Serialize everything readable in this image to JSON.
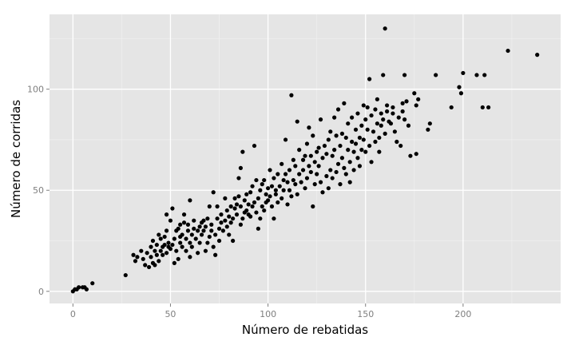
{
  "chart_data": {
    "type": "scatter",
    "title": "",
    "xlabel": "Número de rebatidas",
    "ylabel": "Número de corridas",
    "xlim": [
      -12,
      250
    ],
    "ylim": [
      -6,
      137
    ],
    "x_ticks": [
      0,
      50,
      100,
      150,
      200
    ],
    "y_ticks": [
      0,
      50,
      100
    ],
    "x_tick_labels": [
      "0",
      "50",
      "100",
      "150",
      "200"
    ],
    "y_tick_labels": [
      "0",
      "50",
      "100"
    ],
    "grid": true,
    "legend": "none",
    "point_color": "#000000",
    "panel_color": "#e5e5e5",
    "points": [
      [
        0,
        0
      ],
      [
        1,
        1
      ],
      [
        2,
        1
      ],
      [
        3,
        2
      ],
      [
        5,
        2
      ],
      [
        6,
        2
      ],
      [
        7,
        1
      ],
      [
        10,
        4
      ],
      [
        27,
        8
      ],
      [
        31,
        18
      ],
      [
        32,
        15
      ],
      [
        33,
        17
      ],
      [
        35,
        20
      ],
      [
        36,
        16
      ],
      [
        37,
        13
      ],
      [
        38,
        19
      ],
      [
        39,
        12
      ],
      [
        40,
        22
      ],
      [
        40,
        17
      ],
      [
        41,
        14
      ],
      [
        41,
        25
      ],
      [
        42,
        20
      ],
      [
        42,
        13
      ],
      [
        43,
        23
      ],
      [
        43,
        18
      ],
      [
        44,
        15
      ],
      [
        44,
        28
      ],
      [
        45,
        20
      ],
      [
        45,
        26
      ],
      [
        46,
        22
      ],
      [
        46,
        18
      ],
      [
        47,
        27
      ],
      [
        47,
        23
      ],
      [
        48,
        30
      ],
      [
        48,
        19
      ],
      [
        48,
        38
      ],
      [
        49,
        22
      ],
      [
        49,
        24
      ],
      [
        50,
        21
      ],
      [
        50,
        35
      ],
      [
        51,
        23
      ],
      [
        51,
        41
      ],
      [
        52,
        26
      ],
      [
        52,
        14
      ],
      [
        53,
        20
      ],
      [
        53,
        30
      ],
      [
        54,
        31
      ],
      [
        54,
        16
      ],
      [
        55,
        24
      ],
      [
        55,
        27
      ],
      [
        55,
        33
      ],
      [
        56,
        22
      ],
      [
        56,
        28
      ],
      [
        57,
        34
      ],
      [
        57,
        38
      ],
      [
        58,
        26
      ],
      [
        58,
        20
      ],
      [
        59,
        30
      ],
      [
        59,
        33
      ],
      [
        60,
        24
      ],
      [
        60,
        17
      ],
      [
        60,
        45
      ],
      [
        61,
        28
      ],
      [
        61,
        22
      ],
      [
        62,
        31
      ],
      [
        62,
        35
      ],
      [
        63,
        26
      ],
      [
        64,
        30
      ],
      [
        64,
        19
      ],
      [
        65,
        32
      ],
      [
        65,
        24
      ],
      [
        66,
        28
      ],
      [
        66,
        34
      ],
      [
        67,
        30
      ],
      [
        67,
        35
      ],
      [
        68,
        32
      ],
      [
        68,
        20
      ],
      [
        69,
        24
      ],
      [
        69,
        36
      ],
      [
        70,
        27
      ],
      [
        70,
        42
      ],
      [
        71,
        30
      ],
      [
        71,
        33
      ],
      [
        72,
        22
      ],
      [
        72,
        49
      ],
      [
        73,
        18
      ],
      [
        73,
        28
      ],
      [
        74,
        36
      ],
      [
        74,
        42
      ],
      [
        75,
        31
      ],
      [
        75,
        25
      ],
      [
        76,
        34
      ],
      [
        76,
        38
      ],
      [
        77,
        30
      ],
      [
        78,
        35
      ],
      [
        78,
        46
      ],
      [
        79,
        40
      ],
      [
        79,
        32
      ],
      [
        80,
        37
      ],
      [
        80,
        28
      ],
      [
        81,
        42
      ],
      [
        81,
        34
      ],
      [
        82,
        25
      ],
      [
        82,
        36
      ],
      [
        83,
        46
      ],
      [
        83,
        41
      ],
      [
        84,
        38
      ],
      [
        84,
        43
      ],
      [
        85,
        56
      ],
      [
        85,
        47
      ],
      [
        86,
        42
      ],
      [
        86,
        33
      ],
      [
        86,
        61
      ],
      [
        87,
        69
      ],
      [
        87,
        36
      ],
      [
        88,
        45
      ],
      [
        88,
        39
      ],
      [
        89,
        40
      ],
      [
        89,
        48
      ],
      [
        90,
        38
      ],
      [
        90,
        43
      ],
      [
        91,
        49
      ],
      [
        91,
        37
      ],
      [
        92,
        52
      ],
      [
        92,
        42
      ],
      [
        93,
        44
      ],
      [
        93,
        72
      ],
      [
        94,
        39
      ],
      [
        94,
        55
      ],
      [
        95,
        46
      ],
      [
        95,
        31
      ],
      [
        96,
        50
      ],
      [
        96,
        36
      ],
      [
        97,
        53
      ],
      [
        97,
        42
      ],
      [
        98,
        40
      ],
      [
        98,
        55
      ],
      [
        99,
        44
      ],
      [
        99,
        48
      ],
      [
        100,
        51
      ],
      [
        100,
        45
      ],
      [
        101,
        47
      ],
      [
        101,
        60
      ],
      [
        102,
        42
      ],
      [
        102,
        52
      ],
      [
        103,
        56
      ],
      [
        103,
        36
      ],
      [
        104,
        50
      ],
      [
        104,
        48
      ],
      [
        105,
        58
      ],
      [
        105,
        44
      ],
      [
        106,
        52
      ],
      [
        107,
        46
      ],
      [
        107,
        63
      ],
      [
        108,
        55
      ],
      [
        108,
        50
      ],
      [
        109,
        58
      ],
      [
        109,
        75
      ],
      [
        110,
        43
      ],
      [
        110,
        54
      ],
      [
        111,
        60
      ],
      [
        111,
        50
      ],
      [
        112,
        47
      ],
      [
        112,
        97
      ],
      [
        113,
        65
      ],
      [
        113,
        55
      ],
      [
        114,
        53
      ],
      [
        114,
        62
      ],
      [
        115,
        84
      ],
      [
        115,
        48
      ],
      [
        116,
        58
      ],
      [
        116,
        70
      ],
      [
        117,
        54
      ],
      [
        118,
        65
      ],
      [
        118,
        60
      ],
      [
        119,
        67
      ],
      [
        119,
        51
      ],
      [
        120,
        73
      ],
      [
        120,
        56
      ],
      [
        121,
        62
      ],
      [
        121,
        81
      ],
      [
        122,
        59
      ],
      [
        122,
        67
      ],
      [
        123,
        42
      ],
      [
        123,
        77
      ],
      [
        124,
        64
      ],
      [
        124,
        53
      ],
      [
        125,
        69
      ],
      [
        125,
        58
      ],
      [
        126,
        71
      ],
      [
        126,
        62
      ],
      [
        127,
        85
      ],
      [
        127,
        54
      ],
      [
        128,
        66
      ],
      [
        128,
        49
      ],
      [
        129,
        72
      ],
      [
        130,
        57
      ],
      [
        130,
        68
      ],
      [
        131,
        75
      ],
      [
        131,
        51
      ],
      [
        132,
        60
      ],
      [
        132,
        79
      ],
      [
        133,
        56
      ],
      [
        133,
        67
      ],
      [
        134,
        86
      ],
      [
        134,
        70
      ],
      [
        135,
        59
      ],
      [
        135,
        77
      ],
      [
        136,
        63
      ],
      [
        136,
        90
      ],
      [
        137,
        72
      ],
      [
        137,
        53
      ],
      [
        138,
        78
      ],
      [
        138,
        66
      ],
      [
        139,
        93
      ],
      [
        139,
        61
      ],
      [
        140,
        76
      ],
      [
        140,
        58
      ],
      [
        141,
        70
      ],
      [
        141,
        83
      ],
      [
        142,
        64
      ],
      [
        142,
        54
      ],
      [
        143,
        74
      ],
      [
        143,
        86
      ],
      [
        144,
        69
      ],
      [
        144,
        60
      ],
      [
        145,
        80
      ],
      [
        145,
        73
      ],
      [
        146,
        88
      ],
      [
        146,
        66
      ],
      [
        147,
        76
      ],
      [
        147,
        62
      ],
      [
        148,
        82
      ],
      [
        148,
        70
      ],
      [
        149,
        92
      ],
      [
        149,
        75
      ],
      [
        150,
        69
      ],
      [
        150,
        85
      ],
      [
        151,
        80
      ],
      [
        151,
        91
      ],
      [
        152,
        72
      ],
      [
        152,
        105
      ],
      [
        153,
        87
      ],
      [
        153,
        64
      ],
      [
        154,
        79
      ],
      [
        155,
        90
      ],
      [
        155,
        74
      ],
      [
        156,
        83
      ],
      [
        156,
        95
      ],
      [
        157,
        76
      ],
      [
        157,
        69
      ],
      [
        158,
        88
      ],
      [
        158,
        82
      ],
      [
        159,
        107
      ],
      [
        159,
        85
      ],
      [
        160,
        130
      ],
      [
        160,
        78
      ],
      [
        161,
        92
      ],
      [
        161,
        89
      ],
      [
        162,
        84
      ],
      [
        163,
        83
      ],
      [
        164,
        88
      ],
      [
        164,
        91
      ],
      [
        165,
        79
      ],
      [
        166,
        74
      ],
      [
        167,
        86
      ],
      [
        168,
        72
      ],
      [
        169,
        89
      ],
      [
        169,
        93
      ],
      [
        170,
        85
      ],
      [
        170,
        107
      ],
      [
        171,
        94
      ],
      [
        172,
        82
      ],
      [
        173,
        67
      ],
      [
        175,
        98
      ],
      [
        176,
        92
      ],
      [
        176,
        68
      ],
      [
        177,
        95
      ],
      [
        182,
        80
      ],
      [
        183,
        83
      ],
      [
        186,
        107
      ],
      [
        194,
        91
      ],
      [
        198,
        101
      ],
      [
        199,
        98
      ],
      [
        200,
        108
      ],
      [
        207,
        107
      ],
      [
        210,
        91
      ],
      [
        211,
        107
      ],
      [
        213,
        91
      ],
      [
        223,
        119
      ],
      [
        238,
        117
      ]
    ]
  }
}
